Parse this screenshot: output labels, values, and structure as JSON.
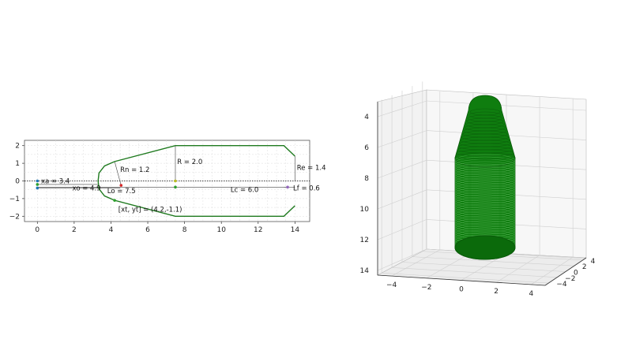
{
  "figure": {
    "colors": {
      "profile": "#1f7a1f",
      "solid": "#0f7d0f",
      "edge": "#0a5a0a",
      "ref": "#444444",
      "grid": "#dddddd"
    }
  },
  "chart_data": [
    {
      "type": "line",
      "title": "",
      "xlabel": "",
      "ylabel": "",
      "xlim": [
        -0.7,
        14.8
      ],
      "ylim": [
        -2.3,
        2.3
      ],
      "xticks": [
        0,
        2,
        4,
        6,
        8,
        10,
        12,
        14
      ],
      "yticks": [
        -2,
        -1,
        0,
        1,
        2
      ],
      "grid": true,
      "series": [
        {
          "color": "#1f7a1f",
          "x": [
            4.2,
            3.65,
            3.35,
            3.3,
            3.35,
            3.65,
            4.2,
            7.5,
            13.4,
            14.0
          ],
          "y": [
            1.1,
            0.85,
            0.45,
            0.0,
            -0.45,
            -0.85,
            -1.1,
            -2.0,
            -2.0,
            -1.4
          ]
        },
        {
          "color": "#1f7a1f",
          "x": [
            4.2,
            7.5,
            13.4,
            14.0
          ],
          "y": [
            1.1,
            2.0,
            2.0,
            1.4
          ]
        }
      ],
      "annotations": [
        {
          "text": "xa = 3.4",
          "x": 0.2,
          "y": 0.0
        },
        {
          "text": "xo = 4.9",
          "x": 1.9,
          "y": -0.4
        },
        {
          "text": "Rn = 1.2",
          "x": 4.5,
          "y": 0.65
        },
        {
          "text": "Lo = 7.5",
          "x": 3.8,
          "y": -0.55
        },
        {
          "text": "R = 2.0",
          "x": 7.6,
          "y": 1.1
        },
        {
          "text": "Lc = 6.0",
          "x": 10.5,
          "y": -0.5
        },
        {
          "text": "Re = 1.4",
          "x": 14.1,
          "y": 0.75
        },
        {
          "text": "Lf = 0.6",
          "x": 13.9,
          "y": -0.4
        },
        {
          "text": "[xt, yt] = (4.2,-1.1)",
          "x": 4.4,
          "y": -1.6
        }
      ],
      "markers": [
        {
          "x": 0.0,
          "y": 0.0,
          "color": "#1f77b4"
        },
        {
          "x": 0.0,
          "y": -0.2,
          "color": "#2ca02c"
        },
        {
          "x": 0.0,
          "y": -0.4,
          "color": "#1f77b4"
        },
        {
          "x": 4.2,
          "y": -1.1,
          "color": "#2ca02c"
        },
        {
          "x": 7.5,
          "y": 0.0,
          "color": "#bcbd22"
        },
        {
          "x": 7.5,
          "y": -0.35,
          "color": "#2ca02c"
        },
        {
          "x": 4.55,
          "y": -0.25,
          "color": "#d62728"
        },
        {
          "x": 13.6,
          "y": -0.35,
          "color": "#9467bd"
        }
      ]
    },
    {
      "type": "surface3d",
      "title": "",
      "xticks": [
        -4,
        -2,
        0,
        2,
        4
      ],
      "yticks": [
        -4,
        -2,
        0,
        2,
        4
      ],
      "zticks": [
        4,
        6,
        8,
        10,
        12,
        14
      ],
      "grid": true,
      "solid_color": "#0f7d0f"
    }
  ]
}
